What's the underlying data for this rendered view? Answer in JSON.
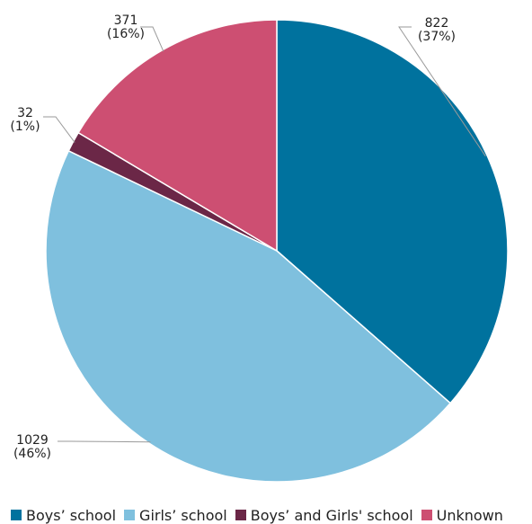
{
  "chart_data": {
    "type": "pie",
    "title": "",
    "start_angle_deg": 0,
    "direction": "clockwise",
    "slices": [
      {
        "name": "Boys’ school",
        "value": 822,
        "label": "822",
        "pct_label": "(37%)",
        "color": "#00729e"
      },
      {
        "name": "Girls’ school",
        "value": 1029,
        "label": "1029",
        "pct_label": "(46%)",
        "color": "#7fc0de"
      },
      {
        "name": "Boys’ and Girls' school",
        "value": 32,
        "label": "32",
        "pct_label": "(1%)",
        "color": "#6b2747"
      },
      {
        "name": "Unknown",
        "value": 371,
        "label": "371",
        "pct_label": "(16%)",
        "color": "#cd4f72"
      }
    ],
    "legend": {
      "placement": "bottom"
    }
  }
}
